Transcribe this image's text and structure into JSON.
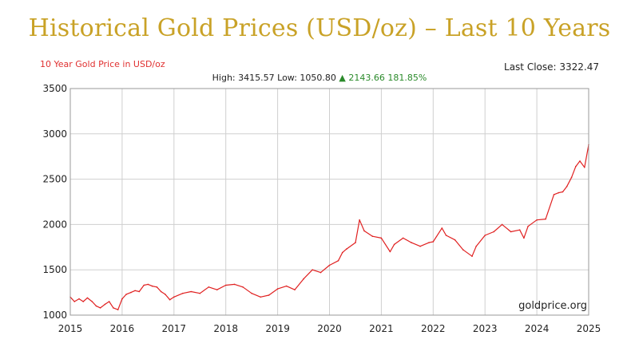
{
  "title": "Historical Gold Prices (USD/oz) – Last 10 Years",
  "chart_data": {
    "type": "line",
    "subtitle": "10 Year Gold Price in USD/oz",
    "last_close": "Last Close: 3322.47",
    "stats": {
      "high_label": "High:",
      "high": "3415.57",
      "low_label": "Low:",
      "low": "1050.80",
      "arrow": "▲",
      "change": "2143.66",
      "change_pct": "181.85%"
    },
    "watermark": "goldprice.org",
    "x_ticks": [
      "2015",
      "2016",
      "2017",
      "2018",
      "2019",
      "2020",
      "2021",
      "2022",
      "2023",
      "2024",
      "2025"
    ],
    "y_ticks": [
      "1000",
      "1500",
      "2000",
      "2500",
      "3000",
      "3500"
    ],
    "xlim": [
      2015,
      2025
    ],
    "ylim": [
      1000,
      3500
    ],
    "grid": true,
    "line_color": "#e02020",
    "series": [
      {
        "x": [
          2015.0,
          2015.08,
          2015.17,
          2015.25,
          2015.33,
          2015.42,
          2015.5,
          2015.58,
          2015.67,
          2015.75,
          2015.83,
          2015.92,
          2016.0,
          2016.08,
          2016.17,
          2016.25,
          2016.33,
          2016.42,
          2016.5,
          2016.58,
          2016.67,
          2016.75,
          2016.83,
          2016.92,
          2017.0,
          2017.17,
          2017.33,
          2017.5,
          2017.67,
          2017.83,
          2018.0,
          2018.17,
          2018.33,
          2018.5,
          2018.67,
          2018.83,
          2019.0,
          2019.17,
          2019.33,
          2019.5,
          2019.67,
          2019.83,
          2020.0,
          2020.17,
          2020.25,
          2020.33,
          2020.5,
          2020.58,
          2020.67,
          2020.83,
          2021.0,
          2021.17,
          2021.25,
          2021.42,
          2021.58,
          2021.75,
          2021.92,
          2022.0,
          2022.17,
          2022.25,
          2022.42,
          2022.58,
          2022.75,
          2022.83,
          2023.0,
          2023.17,
          2023.33,
          2023.5,
          2023.67,
          2023.75,
          2023.83,
          2024.0,
          2024.17,
          2024.33,
          2024.42,
          2024.5,
          2024.58,
          2024.67,
          2024.75,
          2024.83,
          2024.92,
          2025.0
        ],
        "y": [
          1200,
          1150,
          1180,
          1150,
          1190,
          1150,
          1100,
          1080,
          1120,
          1150,
          1080,
          1060,
          1180,
          1230,
          1250,
          1270,
          1260,
          1330,
          1340,
          1320,
          1310,
          1260,
          1230,
          1170,
          1200,
          1240,
          1260,
          1240,
          1310,
          1280,
          1330,
          1340,
          1310,
          1240,
          1200,
          1220,
          1290,
          1320,
          1280,
          1400,
          1500,
          1470,
          1550,
          1600,
          1690,
          1730,
          1800,
          2050,
          1930,
          1870,
          1850,
          1700,
          1780,
          1850,
          1800,
          1760,
          1800,
          1810,
          1960,
          1880,
          1830,
          1720,
          1650,
          1760,
          1880,
          1920,
          2000,
          1920,
          1940,
          1850,
          1980,
          2050,
          2060,
          2330,
          2350,
          2360,
          2420,
          2520,
          2640,
          2700,
          2630,
          2880
        ]
      }
    ]
  }
}
